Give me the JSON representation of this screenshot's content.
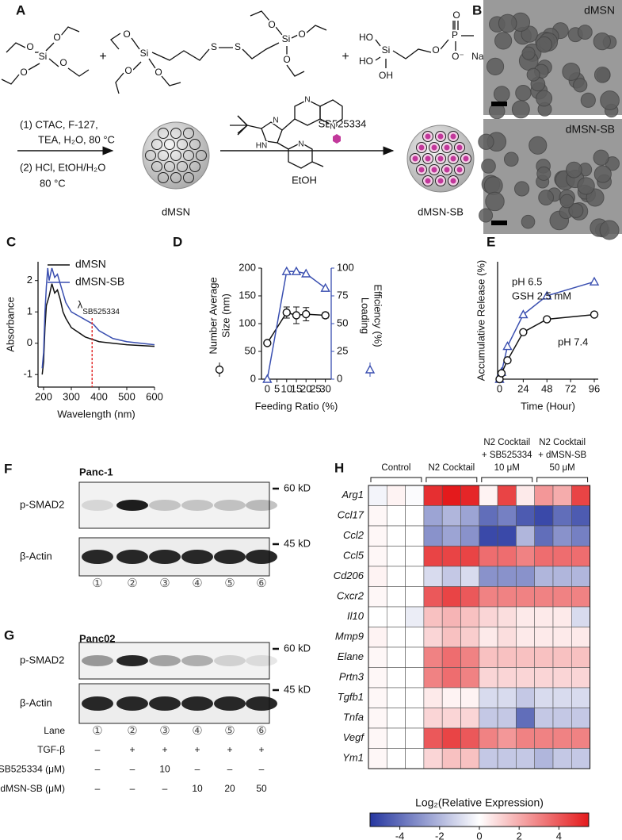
{
  "scheme": {
    "panel": "A",
    "plus": "+",
    "reagents": [
      {
        "atoms": [
          "O",
          "O",
          "Si",
          "O",
          "O"
        ]
      },
      {
        "atoms": [
          "O",
          "Si",
          "O",
          "O",
          "S",
          "S",
          "Si",
          "O",
          "O",
          "O"
        ]
      },
      {
        "atoms": [
          "HO",
          "Si",
          "HO",
          "OH",
          "O",
          "P",
          "O",
          "O⁻",
          "Na⁺"
        ]
      }
    ],
    "drug_atoms": [
      "N",
      "HN",
      "N",
      "N",
      "N"
    ],
    "conditions": [
      "(1) CTAC, F-127,",
      "TEA, H₂O, 80 °C",
      "(2) HCl, EtOH/H₂O",
      "80 °C"
    ],
    "product_1": "dMSN",
    "drug": "SB525334",
    "solvent": "EtOH",
    "product_2": "dMSN-SB"
  },
  "tem": {
    "panel": "B",
    "images": [
      "dMSN",
      "dMSN-SB"
    ]
  },
  "chart_data": [
    {
      "type": "line",
      "panel": "C",
      "xlabel": "Wavelength (nm)",
      "ylabel": "Absorbance",
      "xlim": [
        180,
        600
      ],
      "xticks": [
        200,
        300,
        400,
        500,
        600
      ],
      "ylim": [
        -1.4,
        2.6
      ],
      "yticks": [
        -1,
        0,
        1,
        2
      ],
      "legend": "upper right",
      "series": [
        {
          "name": "dMSN",
          "color": "#111111",
          "x": [
            195,
            200,
            205,
            210,
            220,
            230,
            240,
            250,
            260,
            270,
            280,
            300,
            350,
            400,
            450,
            500,
            600
          ],
          "values": [
            -1.0,
            -0.6,
            0.5,
            1.2,
            1.5,
            1.9,
            1.6,
            1.7,
            1.4,
            1.0,
            0.8,
            0.5,
            0.2,
            0.05,
            0.0,
            -0.05,
            -0.1
          ]
        },
        {
          "name": "dMSN-SB",
          "color": "#3a4fb0",
          "x": [
            195,
            200,
            205,
            210,
            215,
            220,
            230,
            240,
            250,
            260,
            270,
            280,
            300,
            320,
            350,
            380,
            400,
            450,
            500,
            600
          ],
          "values": [
            -0.8,
            -0.3,
            1.0,
            1.8,
            2.4,
            2.0,
            2.4,
            2.1,
            2.2,
            1.9,
            1.6,
            1.3,
            1.0,
            0.9,
            0.75,
            0.6,
            0.4,
            0.15,
            0.05,
            -0.05
          ]
        }
      ],
      "annotation": {
        "text": "λ",
        "subscript": "SB525334",
        "x": 375,
        "color": "#e02020"
      }
    },
    {
      "type": "dual_line",
      "panel": "D",
      "xlabel": "Feeding Ratio (%)",
      "ylabel": [
        "Number Average",
        "Size (nm)"
      ],
      "y2label": [
        "Loading",
        "Efficiency (%)"
      ],
      "x": [
        0,
        10,
        15,
        20,
        30
      ],
      "xlim": [
        -3,
        33
      ],
      "xticks": [
        0,
        5,
        10,
        15,
        20,
        25,
        30
      ],
      "ylim": [
        0,
        200
      ],
      "yticks": [
        0,
        50,
        100,
        150,
        200
      ],
      "y2lim": [
        0,
        100
      ],
      "y2ticks": [
        0,
        25,
        50,
        75,
        100
      ],
      "series": [
        {
          "color": "#111111",
          "marker": "circle",
          "values": [
            65,
            120,
            115,
            117,
            115
          ],
          "errors": [
            0,
            10,
            15,
            12,
            5
          ]
        },
        {
          "color": "#3a4fb0",
          "marker": "triangle",
          "axis": "y2",
          "values": [
            0,
            97,
            97,
            95,
            82
          ]
        }
      ]
    },
    {
      "type": "line",
      "panel": "E",
      "xlabel": "Time (Hour)",
      "ylabel": "Accumulative Release (%)",
      "xlim": [
        -2,
        100
      ],
      "xticks": [
        0,
        24,
        48,
        72,
        96
      ],
      "ylim": [
        0,
        100
      ],
      "legend": "inline",
      "series": [
        {
          "name": "pH 6.5",
          "color": "#3a4fb0",
          "marker": "triangle",
          "x": [
            0,
            2,
            8,
            24,
            48,
            96
          ],
          "values": [
            0,
            6,
            28,
            55,
            71,
            83
          ]
        },
        {
          "name": "pH 7.4",
          "color": "#111111",
          "marker": "circle",
          "x": [
            0,
            2,
            8,
            24,
            48,
            96
          ],
          "values": [
            0,
            5,
            16,
            40,
            51,
            55
          ]
        }
      ],
      "annotation": {
        "text": "GSH 2.5 mM"
      }
    },
    {
      "type": "heatmap",
      "panel": "H",
      "groups": [
        [
          "Control"
        ],
        [
          "N2 Cocktail"
        ],
        [
          "N2 Cocktail",
          "+ SB525334",
          "10 μM"
        ],
        [
          "N2 Cocktail",
          "+ dMSN-SB",
          "50 μM"
        ]
      ],
      "rows": [
        "Arg1",
        "Ccl17",
        "Ccl2",
        "Ccl5",
        "Cd206",
        "Cxcr2",
        "Il10",
        "Mmp9",
        "Elane",
        "Prtn3",
        "Tgfb1",
        "Tnfa",
        "Vegf",
        "Ym1"
      ],
      "values": [
        [
          -0.3,
          0.3,
          -0.1,
          5,
          5.5,
          5.2,
          0.3,
          4.5,
          0.5,
          2.5,
          2,
          4.5
        ],
        [
          0.2,
          0,
          0,
          -2.5,
          -2,
          -2.5,
          -4,
          -3.5,
          -4.5,
          -5,
          -4,
          -4.5
        ],
        [
          0.2,
          0,
          0,
          -3,
          -2.5,
          -3,
          -5,
          -5,
          -2,
          -4,
          -3,
          -3.5
        ],
        [
          0.2,
          0,
          0,
          4.5,
          4.5,
          4.5,
          3.5,
          3.5,
          3,
          3.5,
          3.5,
          3.5
        ],
        [
          0.3,
          0,
          0,
          -1,
          -1.5,
          -1,
          -3,
          -3,
          -3,
          -2,
          -2,
          -2
        ],
        [
          0.2,
          0,
          0,
          4,
          4.5,
          4,
          3,
          3,
          3,
          3,
          3,
          3
        ],
        [
          0,
          0,
          -0.5,
          1.5,
          1.8,
          1.5,
          1,
          0.8,
          0.5,
          0.5,
          0.5,
          -1
        ],
        [
          0.3,
          0,
          0,
          1,
          1.5,
          1.2,
          0.5,
          0.8,
          0.5,
          0.5,
          0.5,
          0.5
        ],
        [
          0.2,
          0,
          0,
          3,
          3.5,
          3,
          1.5,
          1.5,
          1.5,
          1.5,
          1.5,
          1.5
        ],
        [
          0.2,
          0,
          0,
          3,
          3.5,
          3,
          1,
          1,
          1,
          1,
          1,
          1
        ],
        [
          0.2,
          0,
          0,
          0.5,
          0.3,
          0.3,
          -1,
          -1,
          -1.5,
          -1,
          -1,
          -1
        ],
        [
          0.2,
          0,
          0,
          1,
          1,
          1,
          -1.5,
          -1.5,
          -4,
          -1.5,
          -1.5,
          -1.5
        ],
        [
          0.2,
          0,
          0,
          4,
          4.5,
          4,
          3,
          2.5,
          3,
          3,
          3,
          3
        ],
        [
          0.2,
          0,
          0,
          1,
          1.5,
          1.5,
          -1.5,
          -1.5,
          -1.5,
          -2,
          -1.5,
          -1.5
        ]
      ],
      "colorbar_label": "Log₂(Relative Expression)",
      "zlim": [
        -5.5,
        5.5
      ],
      "zticks": [
        -4,
        -2,
        0,
        2,
        4
      ],
      "colormap": [
        "#2637a0",
        "#ffffff",
        "#e41a1c"
      ]
    }
  ],
  "blots": [
    {
      "panel": "F",
      "cell_line": "Panc-1",
      "rows": [
        "p-SMAD2",
        "β-Actin"
      ],
      "markers": [
        "60 kD",
        "45 kD"
      ],
      "lanes": [
        "①",
        "②",
        "③",
        "④",
        "⑤",
        "⑥"
      ]
    },
    {
      "panel": "G",
      "cell_line": "Panc02",
      "rows": [
        "p-SMAD2",
        "β-Actin"
      ],
      "markers": [
        "60 kD",
        "45 kD"
      ]
    }
  ],
  "lane_table": {
    "header": "Lane",
    "lanes": [
      "①",
      "②",
      "③",
      "④",
      "⑤",
      "⑥"
    ],
    "rows": [
      {
        "label": "TGF-β",
        "cells": [
          "–",
          "+",
          "+",
          "+",
          "+",
          "+"
        ]
      },
      {
        "label": "SB525334 (μM)",
        "cells": [
          "–",
          "–",
          "10",
          "–",
          "–",
          "–"
        ]
      },
      {
        "label": "dMSN-SB (μM)",
        "cells": [
          "–",
          "–",
          "–",
          "10",
          "20",
          "50"
        ]
      }
    ]
  }
}
